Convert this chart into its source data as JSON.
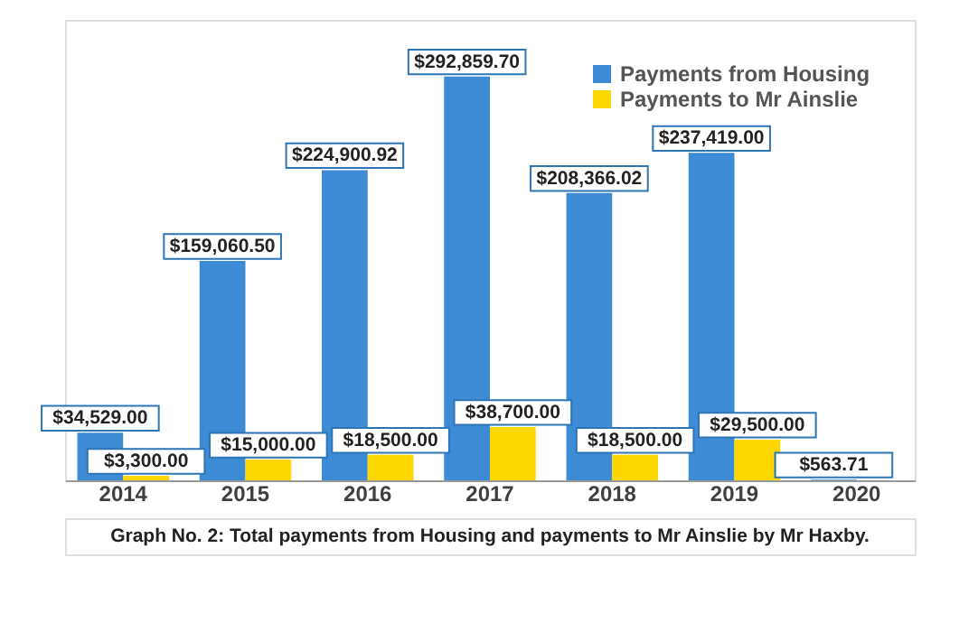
{
  "chart_data": {
    "type": "bar",
    "categories": [
      "2014",
      "2015",
      "2016",
      "2017",
      "2018",
      "2019",
      "2020"
    ],
    "series": [
      {
        "name": "Payments from Housing",
        "color": "#3d8bd4",
        "values": [
          34529.0,
          159060.5,
          224900.92,
          292859.7,
          208366.02,
          237419.0,
          563.71
        ],
        "value_labels": [
          "$34,529.00",
          "$159,060.50",
          "$224,900.92",
          "$292,859.70",
          "$208,366.02",
          "$237,419.00",
          "$563.71"
        ]
      },
      {
        "name": "Payments to Mr Ainslie",
        "color": "#ffd700",
        "values": [
          3300.0,
          15000.0,
          18500.0,
          38700.0,
          18500.0,
          29500.0,
          null
        ],
        "value_labels": [
          "$3,300.00",
          "$15,000.00",
          "$18,500.00",
          "$38,700.00",
          "$18,500.00",
          "$29,500.00",
          null
        ]
      }
    ],
    "legend": "top right",
    "annotations": [
      "Graph No. 2: Total payments from Housing and payments to Mr Ainslie by Mr Haxby."
    ]
  }
}
